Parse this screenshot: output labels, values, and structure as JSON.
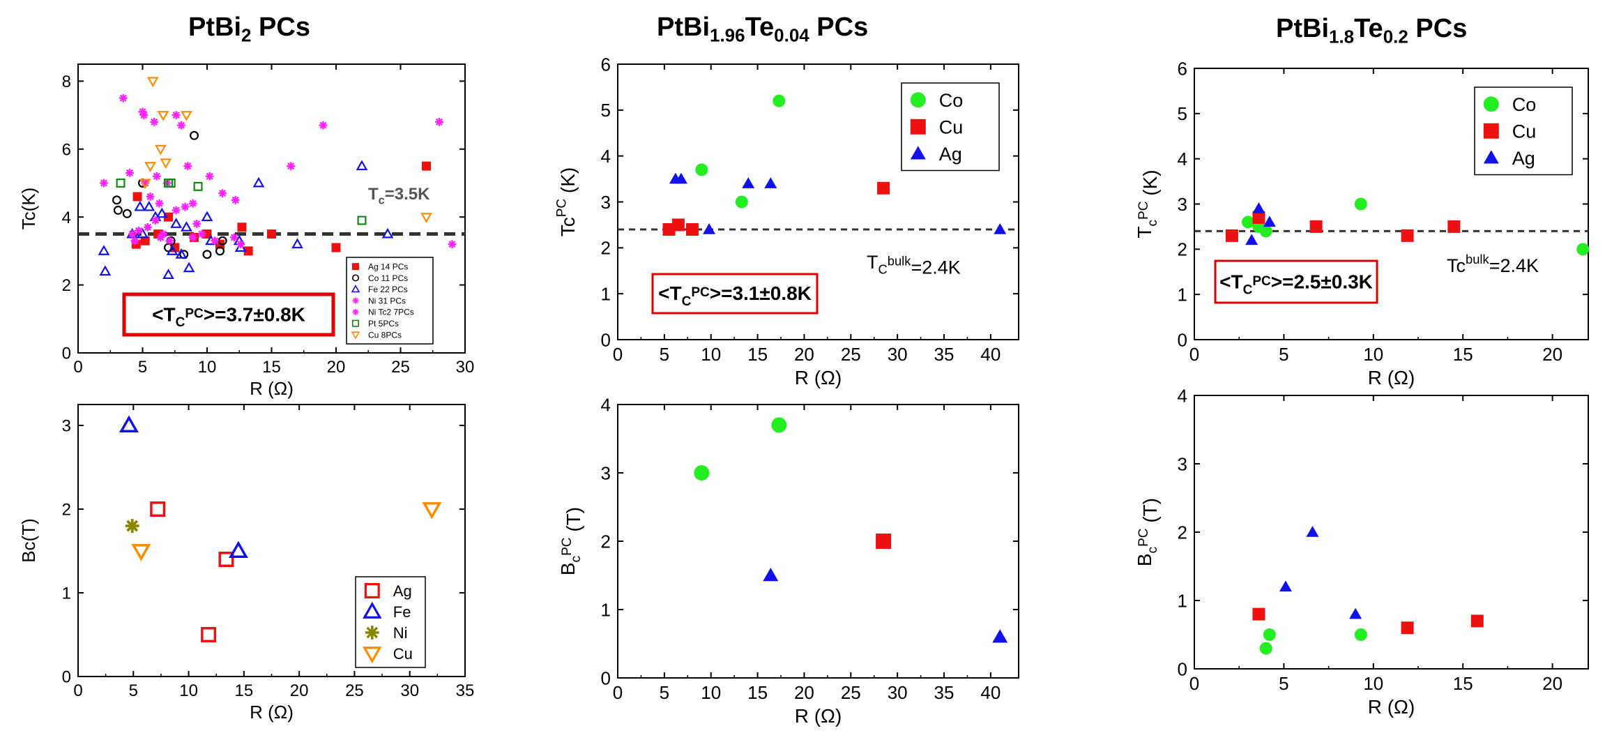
{
  "titles": [
    {
      "base": "PtBi",
      "sub1": "2",
      "mid": "",
      "sub2": "",
      "tail": " PCs"
    },
    {
      "base": "PtBi",
      "sub1": "1.96",
      "mid": "Te",
      "sub2": "0.04",
      "tail": " PCs"
    },
    {
      "base": "PtBi",
      "sub1": "1.8",
      "mid": "Te",
      "sub2": "0.2",
      "tail": " PCs"
    }
  ],
  "colors": {
    "green": "#22ee22",
    "red": "#ee1111",
    "blue": "#1111ee",
    "magenta": "#ff22ff",
    "olive": "#888800",
    "orange": "#ff8c00",
    "darkgreen": "#118811",
    "black": "#000000"
  },
  "chart_data": [
    {
      "id": "tc-ptbi2",
      "type": "scatter",
      "xlabel": "R (Ω)",
      "ylabel": "Tc(K)",
      "xlim": [
        0,
        30
      ],
      "ylim": [
        0,
        8.5
      ],
      "xticks": [
        0,
        5,
        10,
        15,
        20,
        25,
        30
      ],
      "yticks": [
        0,
        2,
        4,
        6,
        8
      ],
      "hline": {
        "y": 3.5,
        "label": "T",
        "label_sub": "c",
        "label_tail": "=3.5K"
      },
      "annotation": {
        "text_a": "<T",
        "sub": "C",
        "sup": "PC",
        "text_b": ">=3.7±0.8K"
      },
      "legend_position": "bottom-right",
      "series": [
        {
          "name": "Ag 14 PCs",
          "marker": "square-filled",
          "color": "red",
          "points": [
            [
              4.5,
              3.2
            ],
            [
              4.6,
              4.6
            ],
            [
              5.2,
              3.3
            ],
            [
              6.2,
              3.5
            ],
            [
              7,
              4
            ],
            [
              7.5,
              3.1
            ],
            [
              9,
              3.4
            ],
            [
              10,
              3.5
            ],
            [
              11,
              3.2
            ],
            [
              12.7,
              3.7
            ],
            [
              13.2,
              3
            ],
            [
              15,
              3.5
            ],
            [
              20,
              3.1
            ],
            [
              27,
              5.5
            ]
          ]
        },
        {
          "name": "Co 11 PCs",
          "marker": "circle-open",
          "color": "black",
          "points": [
            [
              3,
              4.5
            ],
            [
              3.1,
              4.2
            ],
            [
              3.8,
              4.1
            ],
            [
              5,
              5
            ],
            [
              7,
              3.1
            ],
            [
              7.2,
              3.3
            ],
            [
              8.2,
              2.9
            ],
            [
              9,
              6.4
            ],
            [
              10,
              2.9
            ],
            [
              11,
              3
            ],
            [
              11.2,
              3.3
            ]
          ]
        },
        {
          "name": "Fe 22 PCs",
          "marker": "triangle-up-open",
          "color": "blue",
          "points": [
            [
              2,
              3
            ],
            [
              2.1,
              2.4
            ],
            [
              4.2,
              3.5
            ],
            [
              4.8,
              4.3
            ],
            [
              5,
              3.5
            ],
            [
              5.5,
              4.3
            ],
            [
              6,
              4
            ],
            [
              6.5,
              4.1
            ],
            [
              7,
              2.3
            ],
            [
              7.3,
              3
            ],
            [
              7.6,
              3.8
            ],
            [
              8,
              2.9
            ],
            [
              8.4,
              3.7
            ],
            [
              8.6,
              2.5
            ],
            [
              10,
              4
            ],
            [
              10.3,
              3.3
            ],
            [
              12.5,
              3.3
            ],
            [
              12.6,
              3.1
            ],
            [
              14,
              5
            ],
            [
              17,
              3.2
            ],
            [
              22,
              5.5
            ],
            [
              24,
              3.5
            ]
          ]
        },
        {
          "name": "Ni 31 PCs",
          "marker": "asterisk",
          "color": "magenta",
          "points": [
            [
              2,
              5
            ],
            [
              3.5,
              7.5
            ],
            [
              4,
              5.3
            ],
            [
              4.2,
              3.5
            ],
            [
              4.4,
              3.3
            ],
            [
              4.7,
              3.6
            ],
            [
              5,
              7.1
            ],
            [
              5.2,
              5
            ],
            [
              5.4,
              3.7
            ],
            [
              5.6,
              4.6
            ],
            [
              5.9,
              6.8
            ],
            [
              6,
              3.9
            ],
            [
              6.3,
              4.4
            ],
            [
              6.6,
              3.5
            ],
            [
              6.9,
              5
            ],
            [
              7.1,
              3.3
            ],
            [
              7.6,
              4.2
            ],
            [
              8,
              6.7
            ],
            [
              8.5,
              5.5
            ],
            [
              8.9,
              4.4
            ],
            [
              9.2,
              3.8
            ],
            [
              9.6,
              3.5
            ],
            [
              10.2,
              5.2
            ],
            [
              10.6,
              3.3
            ],
            [
              11.2,
              4.7
            ],
            [
              12.2,
              4.5
            ],
            [
              12.6,
              3.2
            ],
            [
              16.5,
              5.5
            ],
            [
              19,
              6.7
            ],
            [
              28,
              6.8
            ],
            [
              29,
              3.2
            ]
          ]
        },
        {
          "name": "Ni Tc2 7PCs",
          "marker": "asterisk",
          "color": "magenta",
          "points": [
            [
              5.1,
              7
            ],
            [
              6.1,
              5.2
            ],
            [
              6.4,
              3.4
            ],
            [
              7.6,
              7
            ],
            [
              8.3,
              4.3
            ],
            [
              8.9,
              3.4
            ],
            [
              12.1,
              3.4
            ]
          ]
        },
        {
          "name": "Pt 5PCs",
          "marker": "square-open",
          "color": "darkgreen",
          "points": [
            [
              3.3,
              5
            ],
            [
              7,
              5
            ],
            [
              7.2,
              5
            ],
            [
              9.3,
              4.9
            ],
            [
              22,
              3.9
            ]
          ]
        },
        {
          "name": "Cu 8PCs",
          "marker": "triangle-down-open",
          "color": "orange",
          "points": [
            [
              5.2,
              5
            ],
            [
              5.6,
              5.5
            ],
            [
              5.8,
              8
            ],
            [
              6.4,
              6
            ],
            [
              6.6,
              7
            ],
            [
              6.8,
              5.6
            ],
            [
              8.4,
              7
            ],
            [
              27,
              4
            ]
          ]
        }
      ]
    },
    {
      "id": "tc-te004",
      "type": "scatter",
      "xlabel": "R (Ω)",
      "ylabel": "Tc",
      "ylabel_sup": "PC",
      "ylabel_tail": " (K)",
      "xlim": [
        0,
        43
      ],
      "ylim": [
        0,
        6
      ],
      "xticks": [
        0,
        5,
        10,
        15,
        20,
        25,
        30,
        35,
        40
      ],
      "yticks": [
        0,
        1,
        2,
        3,
        4,
        5,
        6
      ],
      "hline": {
        "y": 2.4,
        "label": "T",
        "label_sub": "C",
        "label_sup": "bulk",
        "label_tail": "=2.4K"
      },
      "annotation": {
        "text_a": "<T",
        "sub": "C",
        "sup": "PC",
        "text_b": ">=3.1±0.8K"
      },
      "legend_position": "top-right",
      "series": [
        {
          "name": "Co",
          "marker": "circle-filled",
          "color": "green",
          "points": [
            [
              9,
              3.7
            ],
            [
              13.3,
              3
            ],
            [
              17.3,
              5.2
            ]
          ]
        },
        {
          "name": "Cu",
          "marker": "square-filled",
          "color": "red",
          "points": [
            [
              5.5,
              2.4
            ],
            [
              6.5,
              2.5
            ],
            [
              8,
              2.4
            ],
            [
              28.5,
              3.3
            ]
          ]
        },
        {
          "name": "Ag",
          "marker": "triangle-up-filled",
          "color": "blue",
          "points": [
            [
              6.2,
              3.5
            ],
            [
              6.8,
              3.5
            ],
            [
              9.8,
              2.4
            ],
            [
              14,
              3.4
            ],
            [
              16.4,
              3.4
            ],
            [
              41,
              2.4
            ]
          ]
        }
      ]
    },
    {
      "id": "tc-te02",
      "type": "scatter",
      "xlabel": "R (Ω)",
      "ylabel": "T",
      "ylabel_sub": "c",
      "ylabel_sup": "PC",
      "ylabel_tail": " (K)",
      "xlim": [
        0,
        22
      ],
      "ylim": [
        0,
        6
      ],
      "xticks": [
        0,
        5,
        10,
        15,
        20
      ],
      "yticks": [
        0,
        1,
        2,
        3,
        4,
        5,
        6
      ],
      "hline": {
        "y": 2.4,
        "label": "Tc",
        "label_sup": "bulk",
        "label_tail": "=2.4K"
      },
      "annotation": {
        "text_a": "<T",
        "sub": "C",
        "sup": "PC",
        "text_b": ">=2.5±0.3K"
      },
      "legend_position": "top-right",
      "series": [
        {
          "name": "Co",
          "marker": "circle-filled",
          "color": "green",
          "points": [
            [
              3,
              2.6
            ],
            [
              3.6,
              2.5
            ],
            [
              4,
              2.4
            ],
            [
              9.3,
              3
            ],
            [
              21.7,
              2
            ]
          ]
        },
        {
          "name": "Cu",
          "marker": "square-filled",
          "color": "red",
          "points": [
            [
              2.1,
              2.3
            ],
            [
              3.6,
              2.7
            ],
            [
              6.8,
              2.5
            ],
            [
              11.9,
              2.3
            ],
            [
              14.5,
              2.5
            ]
          ]
        },
        {
          "name": "Ag",
          "marker": "triangle-up-filled",
          "color": "blue",
          "points": [
            [
              3.2,
              2.2
            ],
            [
              3.6,
              2.9
            ],
            [
              4.2,
              2.6
            ]
          ]
        }
      ]
    },
    {
      "id": "bc-ptbi2",
      "type": "scatter",
      "xlabel": "R (Ω)",
      "ylabel": "Bc(T)",
      "xlim": [
        0,
        35
      ],
      "ylim": [
        0,
        3.25
      ],
      "xticks": [
        0,
        5,
        10,
        15,
        20,
        25,
        30,
        35
      ],
      "yticks": [
        0,
        1,
        2,
        3
      ],
      "legend_position": "bottom-right",
      "series": [
        {
          "name": "Ag",
          "marker": "square-open",
          "color": "red",
          "points": [
            [
              7.2,
              2
            ],
            [
              13.4,
              1.4
            ],
            [
              11.8,
              0.5
            ]
          ]
        },
        {
          "name": "Fe",
          "marker": "triangle-up-open",
          "color": "blue",
          "points": [
            [
              4.6,
              3
            ],
            [
              14.5,
              1.5
            ]
          ]
        },
        {
          "name": "Ni",
          "marker": "asterisk",
          "color": "olive",
          "points": [
            [
              4.9,
              1.8
            ]
          ]
        },
        {
          "name": "Cu",
          "marker": "triangle-down-open",
          "color": "orange",
          "points": [
            [
              5.7,
              1.5
            ],
            [
              32,
              2
            ]
          ]
        }
      ]
    },
    {
      "id": "bc-te004",
      "type": "scatter",
      "xlabel": "R (Ω)",
      "ylabel": "B",
      "ylabel_sub": "c",
      "ylabel_sup": "PC",
      "ylabel_tail": " (T)",
      "xlim": [
        0,
        43
      ],
      "ylim": [
        0,
        4
      ],
      "xticks": [
        0,
        5,
        10,
        15,
        20,
        25,
        30,
        35,
        40
      ],
      "yticks": [
        0,
        1,
        2,
        3,
        4
      ],
      "series": [
        {
          "name": "Co",
          "marker": "circle-filled",
          "color": "green",
          "points": [
            [
              9,
              3
            ],
            [
              17.3,
              3.7
            ]
          ]
        },
        {
          "name": "Cu",
          "marker": "square-filled",
          "color": "red",
          "points": [
            [
              28.5,
              2
            ]
          ]
        },
        {
          "name": "Ag",
          "marker": "triangle-up-filled",
          "color": "blue",
          "points": [
            [
              16.4,
              1.5
            ],
            [
              41,
              0.6
            ]
          ]
        }
      ]
    },
    {
      "id": "bc-te02",
      "type": "scatter",
      "xlabel": "R (Ω)",
      "ylabel": "B",
      "ylabel_sub": "c",
      "ylabel_sup": "PC",
      "ylabel_tail": " (T)",
      "xlim": [
        0,
        22
      ],
      "ylim": [
        0,
        4
      ],
      "xticks": [
        0,
        5,
        10,
        15,
        20
      ],
      "yticks": [
        0,
        1,
        2,
        3,
        4
      ],
      "series": [
        {
          "name": "Co",
          "marker": "circle-filled",
          "color": "green",
          "points": [
            [
              4,
              0.3
            ],
            [
              4.2,
              0.5
            ],
            [
              9.3,
              0.5
            ]
          ]
        },
        {
          "name": "Cu",
          "marker": "square-filled",
          "color": "red",
          "points": [
            [
              3.6,
              0.8
            ],
            [
              11.9,
              0.6
            ],
            [
              15.8,
              0.7
            ]
          ]
        },
        {
          "name": "Ag",
          "marker": "triangle-up-filled",
          "color": "blue",
          "points": [
            [
              5.1,
              1.2
            ],
            [
              6.6,
              2
            ],
            [
              9,
              0.8
            ]
          ]
        }
      ]
    }
  ]
}
